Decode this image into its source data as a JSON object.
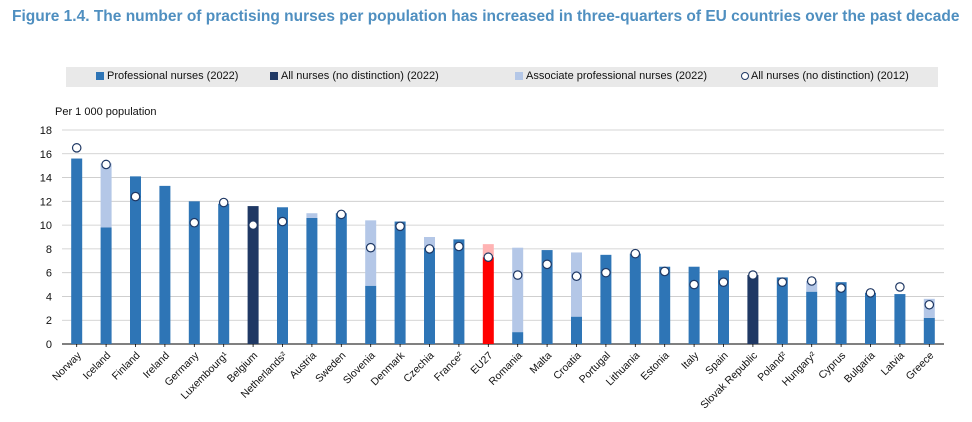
{
  "title": "Figure 1.4. The number of practising nurses per population has increased in three-quarters of EU countries over the past decade",
  "chart_data": {
    "type": "bar",
    "ylabel": "Per 1 000 population",
    "ylim": [
      0,
      18
    ],
    "yticks": [
      0,
      2,
      4,
      6,
      8,
      10,
      12,
      14,
      16,
      18
    ],
    "grid": true,
    "legend_position": "top",
    "legend": [
      {
        "key": "prof",
        "label": "Professional nurses (2022)",
        "color": "#2e75b6",
        "shape": "square"
      },
      {
        "key": "nodist",
        "label": "All nurses (no distinction) (2022)",
        "color": "#1f3864",
        "shape": "square"
      },
      {
        "key": "assoc",
        "label": "Associate professional nurses (2022)",
        "color": "#b4c7e7",
        "shape": "square"
      },
      {
        "key": "y2012",
        "label": "All nurses (no distinction) (2012)",
        "color": "#ffffff",
        "shape": "circle"
      }
    ],
    "categories": [
      "Norway",
      "Iceland",
      "Finland",
      "Ireland",
      "Germany",
      "Luxembourg¹",
      "Belgium",
      "Netherlands²",
      "Austria",
      "Sweden",
      "Slovenia",
      "Denmark",
      "Czechia",
      "France²",
      "EU27",
      "Romania",
      "Malta",
      "Croatia",
      "Portugal",
      "Lithuania",
      "Estonia",
      "Italy",
      "Spain",
      "Slovak Republic",
      "Poland²",
      "Hungary²",
      "Cyprus",
      "Bulgaria",
      "Latvia",
      "Greece"
    ],
    "series": [
      {
        "name": "Professional nurses (2022)",
        "values": [
          15.6,
          9.8,
          14.1,
          13.3,
          12.0,
          11.8,
          0,
          11.5,
          10.6,
          11.0,
          4.9,
          10.3,
          8.1,
          8.8,
          7.3,
          1.0,
          7.9,
          2.3,
          7.5,
          7.6,
          6.5,
          6.5,
          6.2,
          0,
          5.6,
          4.4,
          5.2,
          4.3,
          4.2,
          2.2
        ]
      },
      {
        "name": "All nurses (no distinction) (2022)",
        "values": [
          0,
          0,
          0,
          0,
          0,
          0,
          11.6,
          0,
          0,
          0,
          0,
          0,
          0,
          0,
          0,
          0,
          0,
          0,
          0,
          0,
          0,
          0,
          0,
          5.8,
          0,
          0,
          0,
          0,
          0,
          0
        ]
      },
      {
        "name": "Associate professional nurses (2022)",
        "values": [
          0,
          5.4,
          0,
          0,
          0,
          0,
          0,
          0,
          0.4,
          0,
          5.5,
          0,
          0.9,
          0,
          1.1,
          7.1,
          0,
          5.4,
          0,
          0,
          0,
          0,
          0,
          0,
          0,
          0.9,
          0,
          0,
          0,
          1.6
        ]
      },
      {
        "name": "All nurses (no distinction) (2012)",
        "values": [
          16.5,
          15.1,
          12.4,
          null,
          10.2,
          11.9,
          10.0,
          10.3,
          null,
          10.9,
          8.1,
          9.9,
          8.0,
          8.2,
          7.3,
          5.8,
          6.7,
          5.7,
          6.0,
          7.6,
          6.1,
          5.0,
          5.2,
          5.8,
          5.2,
          5.3,
          4.7,
          4.3,
          4.8,
          3.3
        ]
      }
    ],
    "highlight": {
      "category": "EU27",
      "color": "#ff0000",
      "light_color": "#ffb3b3"
    }
  }
}
